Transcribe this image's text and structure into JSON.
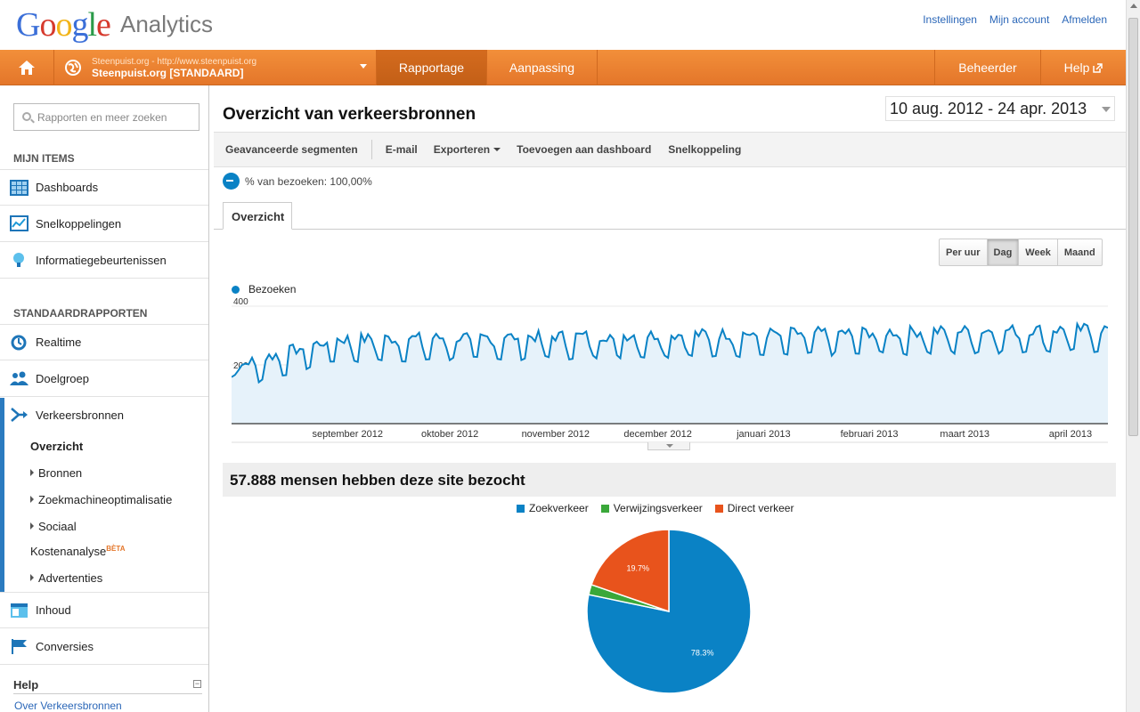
{
  "header": {
    "logo_google": "Google",
    "logo_product": "Analytics",
    "links": [
      "Instellingen",
      "Mijn account",
      "Afmelden"
    ]
  },
  "nav": {
    "account_url": "Steenpuist.org - http://www.steenpuist.org",
    "account_name": "Steenpuist.org [STANDAARD]",
    "rapportage": "Rapportage",
    "aanpassing": "Aanpassing",
    "beheerder": "Beheerder",
    "help": "Help"
  },
  "sidebar": {
    "search_placeholder": "Rapporten en meer zoeken",
    "my_items_heading": "MIJN ITEMS",
    "my_items": [
      "Dashboards",
      "Snelkoppelingen",
      "Informatiegebeurtenissen"
    ],
    "standard_heading": "STANDAARDRAPPORTEN",
    "realtime": "Realtime",
    "doelgroep": "Doelgroep",
    "verkeersbronnen": "Verkeersbronnen",
    "sub_overzicht": "Overzicht",
    "sub_bronnen": "Bronnen",
    "sub_seo": "Zoekmachineoptimalisatie",
    "sub_sociaal": "Sociaal",
    "sub_kosten": "Kostenanalyse",
    "beta": "BÈTA",
    "sub_advertenties": "Advertenties",
    "inhoud": "Inhoud",
    "conversies": "Conversies",
    "help_heading": "Help",
    "help_link": "Over Verkeersbronnen"
  },
  "main": {
    "title": "Overzicht van verkeersbronnen",
    "date_range": "10 aug. 2012 - 24 apr. 2013",
    "toolbar": {
      "segments": "Geavanceerde segmenten",
      "email": "E-mail",
      "export": "Exporteren",
      "dashboard": "Toevoegen aan dashboard",
      "shortcut": "Snelkoppeling"
    },
    "segment_text": "% van bezoeken: 100,00%",
    "tab": "Overzicht",
    "granularity": [
      "Per uur",
      "Dag",
      "Week",
      "Maand"
    ],
    "granularity_selected": "Dag",
    "visitors_heading": "57.888 mensen hebben deze site bezocht"
  },
  "chart_data": [
    {
      "type": "line",
      "series": [
        {
          "name": "Bezoeken",
          "color": "#0a82c5"
        }
      ],
      "ylim": [
        0,
        400
      ],
      "yticks": [
        200,
        400
      ],
      "xlabels": [
        "september 2012",
        "oktober 2012",
        "november 2012",
        "december 2012",
        "januari 2013",
        "februari 2013",
        "maart 2013",
        "april 2013"
      ],
      "x_start": "2012-08-10",
      "x_end": "2013-04-24",
      "weekly_pattern": {
        "weekday_peak": 250,
        "weekend_low": 175,
        "start_level": 140,
        "end_level": 300
      }
    },
    {
      "type": "pie",
      "slices": [
        {
          "label": "Zoekverkeer",
          "value": 78.3,
          "color": "#0a82c5",
          "text": "78.3%"
        },
        {
          "label": "Verwijzingsverkeer",
          "value": 2.0,
          "color": "#3aa83a",
          "text": ""
        },
        {
          "label": "Direct verkeer",
          "value": 19.7,
          "color": "#e8531c",
          "text": "19.7%"
        }
      ]
    }
  ]
}
